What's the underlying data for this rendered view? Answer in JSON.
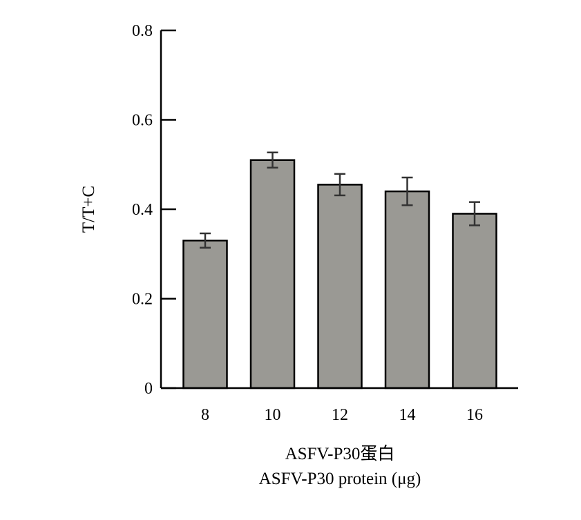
{
  "chart_data": {
    "type": "bar",
    "categories": [
      "8",
      "10",
      "12",
      "14",
      "16"
    ],
    "values": [
      0.33,
      0.51,
      0.455,
      0.44,
      0.39
    ],
    "errors": [
      0.016,
      0.017,
      0.024,
      0.031,
      0.026
    ],
    "title": "",
    "xlabel": [
      "ASFV-P30蛋白",
      "ASFV-P30 protein (μg)"
    ],
    "ylabel": "T/T+C",
    "ylim": [
      0,
      0.8
    ],
    "yticks": [
      "0",
      "0.2",
      "0.4",
      "0.6",
      "0.8"
    ],
    "ytick_values": [
      0,
      0.2,
      0.4,
      0.6,
      0.8
    ],
    "grid": false,
    "bar_color": "#9a9994",
    "bar_edge_color": "#000000",
    "error_color": "#333333"
  }
}
